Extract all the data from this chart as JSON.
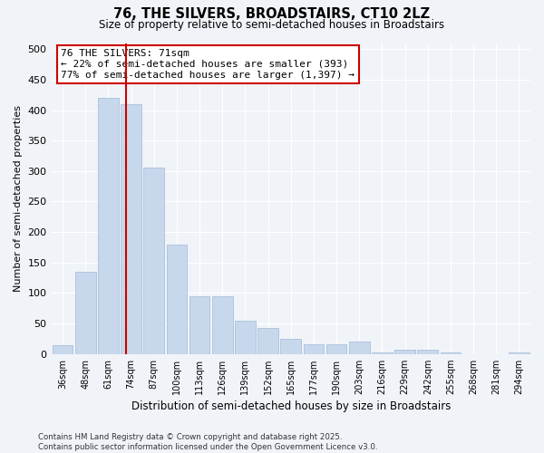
{
  "title": "76, THE SILVERS, BROADSTAIRS, CT10 2LZ",
  "subtitle": "Size of property relative to semi-detached houses in Broadstairs",
  "xlabel": "Distribution of semi-detached houses by size in Broadstairs",
  "ylabel": "Number of semi-detached properties",
  "categories": [
    "36sqm",
    "48sqm",
    "61sqm",
    "74sqm",
    "87sqm",
    "100sqm",
    "113sqm",
    "126sqm",
    "139sqm",
    "152sqm",
    "165sqm",
    "177sqm",
    "190sqm",
    "203sqm",
    "216sqm",
    "229sqm",
    "242sqm",
    "255sqm",
    "268sqm",
    "281sqm",
    "294sqm"
  ],
  "values": [
    15,
    135,
    420,
    410,
    305,
    180,
    95,
    95,
    55,
    42,
    25,
    16,
    16,
    20,
    3,
    7,
    7,
    3,
    0,
    0,
    3
  ],
  "bar_color": "#c8d8ec",
  "bar_edge_color": "#a0b8d8",
  "annotation_text": "76 THE SILVERS: 71sqm\n← 22% of semi-detached houses are smaller (393)\n77% of semi-detached houses are larger (1,397) →",
  "annotation_box_color": "#cc0000",
  "red_line_index": 2.77,
  "footer": "Contains HM Land Registry data © Crown copyright and database right 2025.\nContains public sector information licensed under the Open Government Licence v3.0.",
  "ylim": [
    0,
    510
  ],
  "yticks": [
    0,
    50,
    100,
    150,
    200,
    250,
    300,
    350,
    400,
    450,
    500
  ],
  "background_color": "#f0f4f8",
  "grid_color": "#ffffff"
}
